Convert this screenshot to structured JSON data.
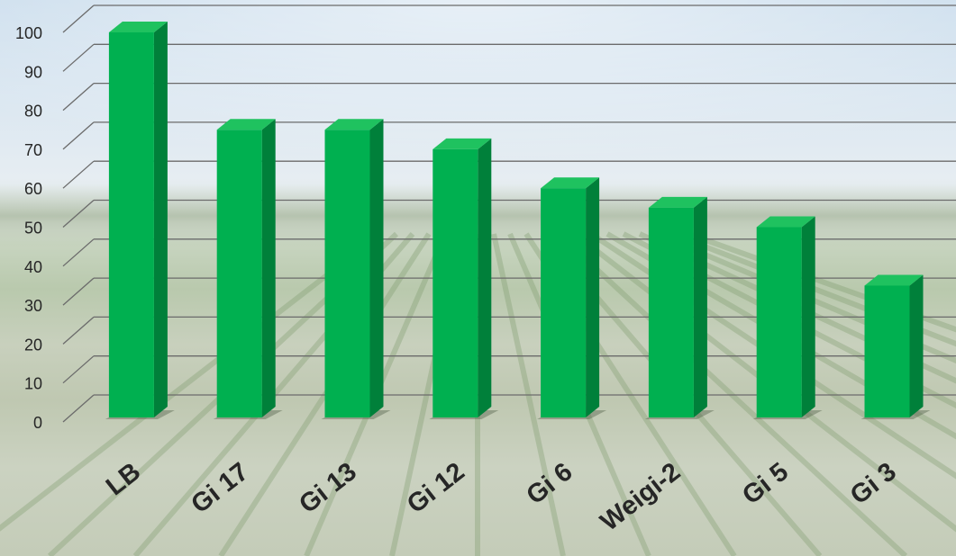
{
  "chart_data": {
    "type": "bar",
    "title": "",
    "xlabel": "",
    "ylabel": "",
    "categories": [
      "LB",
      "Gi 17",
      "Gi 13",
      "Gi 12",
      "Gi 6",
      "Weigi-2",
      "Gi 5",
      "Gi 3"
    ],
    "values": [
      100,
      75,
      75,
      70,
      60,
      55,
      50,
      35
    ],
    "ylim": [
      0,
      100
    ],
    "yticks": [
      0,
      10,
      20,
      30,
      40,
      50,
      60,
      70,
      80,
      90,
      100
    ],
    "grid": true,
    "legend": "none",
    "style": "3d-column",
    "colors": {
      "bar_front": "#00b050",
      "bar_top": "#1fc25f",
      "bar_side": "#00803a",
      "grid": "#6b6b6b"
    }
  }
}
